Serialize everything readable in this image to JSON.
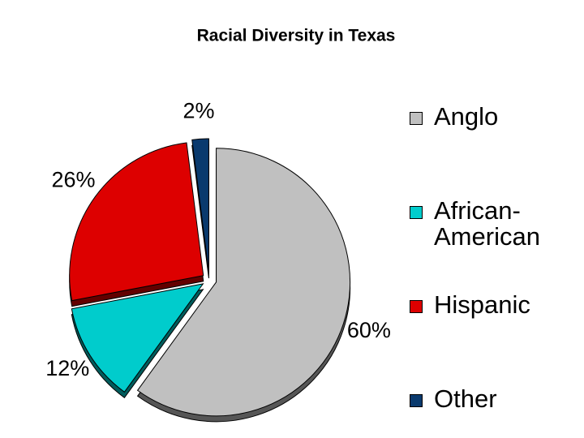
{
  "chart_data": {
    "type": "pie",
    "title": "Racial Diversity in Texas",
    "categories": [
      "Anglo",
      "African-American",
      "Hispanic",
      "Other"
    ],
    "values": [
      60,
      12,
      26,
      2
    ],
    "value_labels": [
      "60%",
      "12%",
      "26%",
      "2%"
    ],
    "colors": [
      "#c0c0c0",
      "#00cccc",
      "#dd0000",
      "#0a3a6e"
    ],
    "legend": "right"
  }
}
